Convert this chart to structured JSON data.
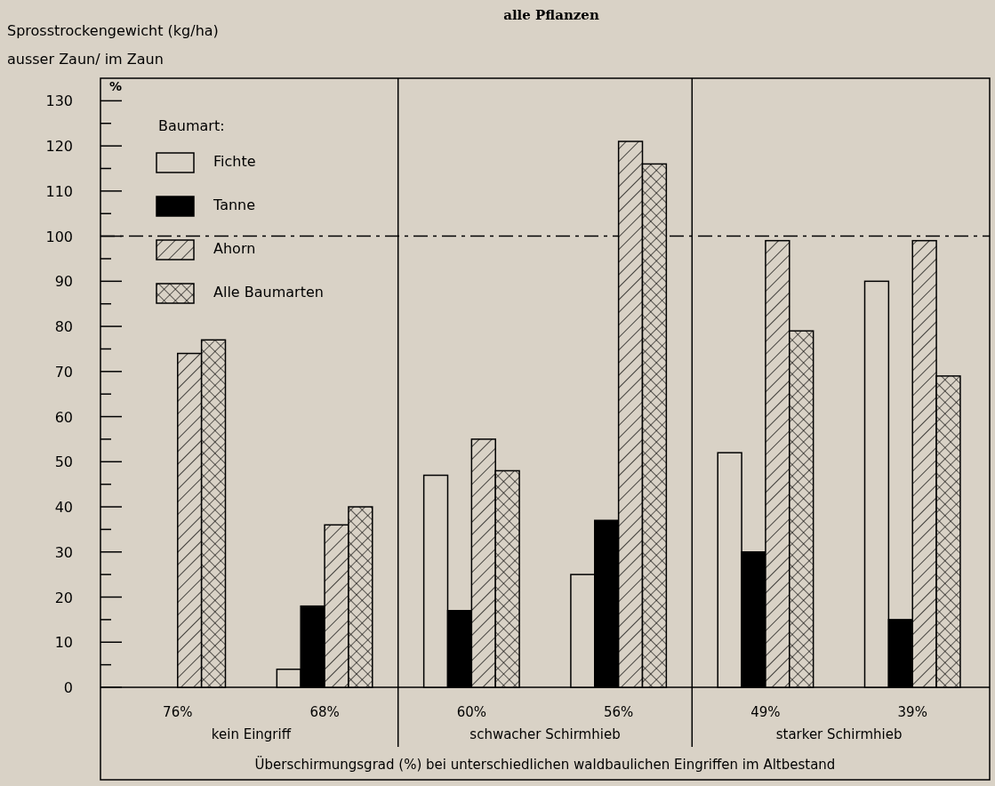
{
  "chart_data": {
    "type": "bar",
    "title": "alle Pflanzen",
    "subtitle": "ausser Zaun/ im Zaun",
    "ylabel": "Sprosstrockengewicht (kg/ha)",
    "xlabel": "Überschirmungsgrad (%) bei unterschiedlichen waldbaulichen Eingriffen im Altbestand",
    "categories": [
      "76%",
      "68%",
      "60%",
      "56%",
      "49%",
      "39%"
    ],
    "series": [
      {
        "name": "Fichte",
        "color": "#d9d2c6",
        "values": [
          null,
          4,
          47,
          25,
          52,
          90
        ]
      },
      {
        "name": "Tanne",
        "color": "#000000",
        "values": [
          null,
          18,
          17,
          37,
          30,
          15
        ]
      },
      {
        "name": "Ahorn",
        "color": "#000000",
        "values": [
          74,
          36,
          55,
          121,
          99,
          99
        ]
      },
      {
        "name": "Alle Baumarten",
        "color": "#000000",
        "values": [
          77,
          40,
          48,
          116,
          79,
          69
        ]
      }
    ],
    "legend": "top left",
    "legend_title": "Baumart:",
    "ylim": [
      0,
      135
    ],
    "yticks": [
      0,
      {
        "value": 5,
        "label": null
      },
      10,
      {
        "value": 15,
        "label": null
      },
      20,
      {
        "value": 25,
        "label": null
      },
      30,
      {
        "value": 35,
        "label": null
      },
      40,
      {
        "value": 45,
        "label": null
      },
      50,
      {
        "value": 55,
        "label": null
      },
      60,
      {
        "value": 65,
        "label": null
      },
      70,
      {
        "value": 75,
        "label": null
      },
      80,
      {
        "value": 85,
        "label": null
      },
      90,
      {
        "value": 95,
        "label": null
      },
      100,
      {
        "value": 105,
        "label": null
      },
      110,
      {
        "value": 115,
        "label": null
      },
      120,
      {
        "value": 125,
        "label": null
      },
      130
    ],
    "ref_lines": [
      {
        "axis": "y",
        "value": 100,
        "line_style": "dashdot"
      }
    ],
    "annotations": [
      "kein Eingriff",
      "schwacher Schirmhieb",
      "starker Schirmhieb",
      "%"
    ]
  }
}
